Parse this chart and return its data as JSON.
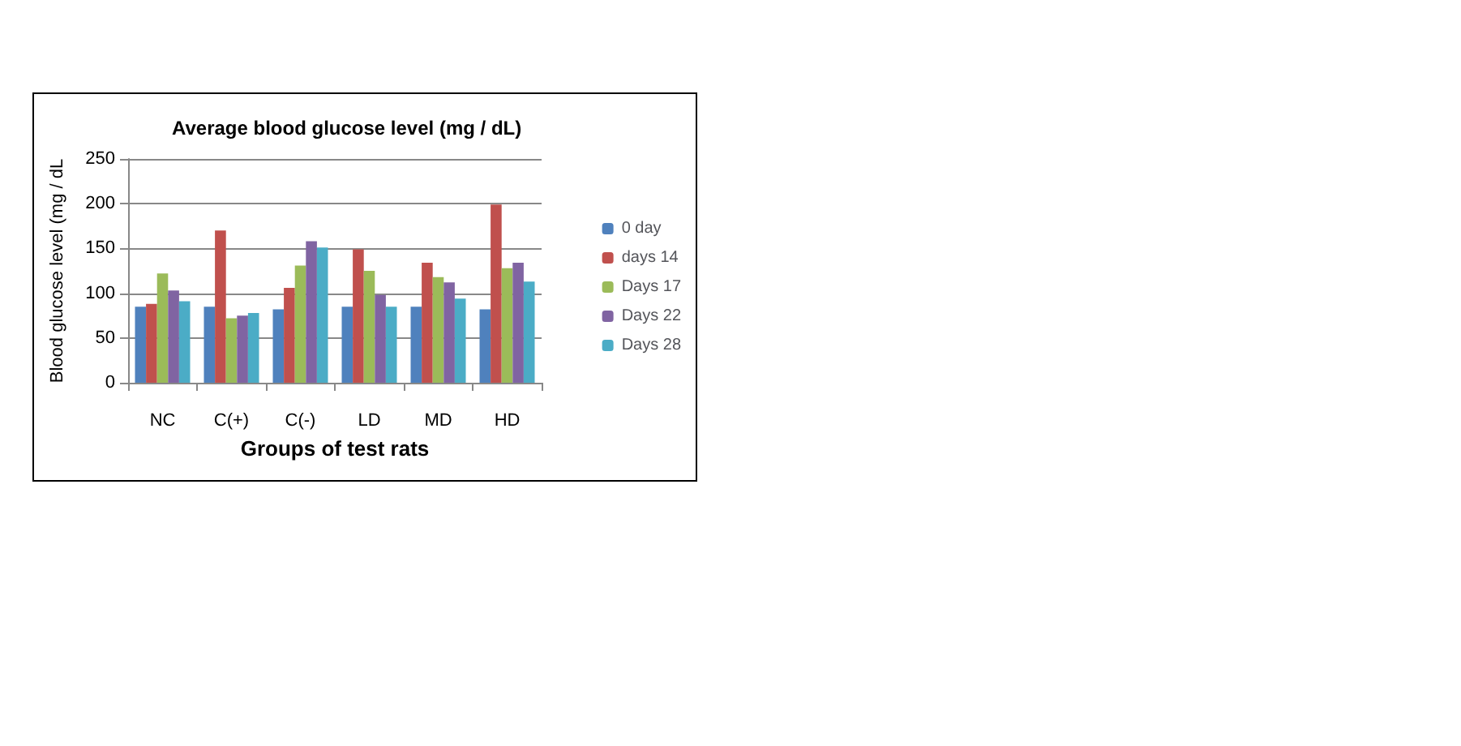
{
  "chart_data": {
    "type": "bar",
    "title": "Average blood glucose level (mg / dL)",
    "xlabel": "Groups of test rats",
    "ylabel": "Blood glucose level (mg / dL",
    "categories": [
      "NC",
      "C(+)",
      "C(-)",
      "LD",
      "MD",
      "HD"
    ],
    "series": [
      {
        "name": "0 day",
        "color": "#4f81bd",
        "values": [
          85,
          85,
          82,
          85,
          85,
          82
        ]
      },
      {
        "name": "days 14",
        "color": "#c0504d",
        "values": [
          88,
          170,
          106,
          149,
          134,
          199
        ]
      },
      {
        "name": "Days 17",
        "color": "#9bbb59",
        "values": [
          122,
          72,
          131,
          125,
          118,
          128
        ]
      },
      {
        "name": "Days 22",
        "color": "#8064a2",
        "values": [
          103,
          75,
          158,
          98,
          112,
          134
        ]
      },
      {
        "name": "Days 28",
        "color": "#4bacc6",
        "values": [
          91,
          78,
          151,
          85,
          94,
          113
        ]
      }
    ],
    "ylim": [
      0,
      250
    ],
    "yticks": [
      0,
      50,
      100,
      150,
      200,
      250
    ],
    "grid": "y",
    "legend": "right"
  }
}
